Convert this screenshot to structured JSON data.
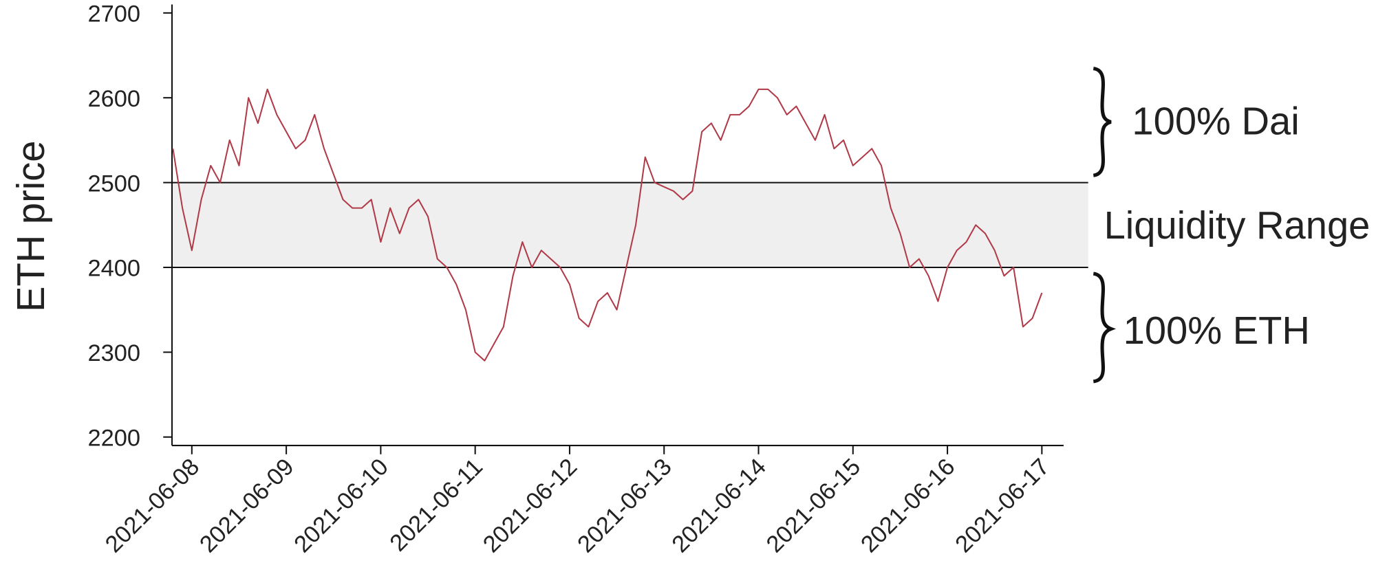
{
  "chart_data": {
    "type": "line",
    "y_label": "ETH price",
    "color": "#b03a48",
    "x": [
      -0.2,
      -0.1,
      0.0,
      0.1,
      0.2,
      0.3,
      0.4,
      0.5,
      0.6,
      0.7,
      0.8,
      0.9,
      1.0,
      1.1,
      1.2,
      1.3,
      1.4,
      1.5,
      1.6,
      1.7,
      1.8,
      1.9,
      2.0,
      2.1,
      2.2,
      2.3,
      2.4,
      2.5,
      2.6,
      2.7,
      2.8,
      2.9,
      3.0,
      3.1,
      3.2,
      3.3,
      3.4,
      3.5,
      3.6,
      3.7,
      3.8,
      3.9,
      4.0,
      4.1,
      4.2,
      4.3,
      4.4,
      4.5,
      4.6,
      4.7,
      4.8,
      4.9,
      5.0,
      5.1,
      5.2,
      5.3,
      5.4,
      5.5,
      5.6,
      5.7,
      5.8,
      5.9,
      6.0,
      6.1,
      6.2,
      6.3,
      6.4,
      6.5,
      6.6,
      6.7,
      6.8,
      6.9,
      7.0,
      7.1,
      7.2,
      7.3,
      7.4,
      7.5,
      7.6,
      7.7,
      7.8,
      7.9,
      8.0,
      8.1,
      8.2,
      8.3,
      8.4,
      8.5,
      8.6,
      8.7,
      8.8,
      8.9,
      9.0
    ],
    "values": [
      2540,
      2470,
      2420,
      2480,
      2520,
      2500,
      2550,
      2520,
      2600,
      2570,
      2610,
      2580,
      2560,
      2540,
      2550,
      2580,
      2540,
      2510,
      2480,
      2470,
      2470,
      2480,
      2430,
      2470,
      2440,
      2470,
      2480,
      2460,
      2410,
      2400,
      2380,
      2350,
      2300,
      2290,
      2310,
      2330,
      2390,
      2430,
      2400,
      2420,
      2410,
      2400,
      2380,
      2340,
      2330,
      2360,
      2370,
      2350,
      2400,
      2450,
      2530,
      2500,
      2495,
      2490,
      2480,
      2490,
      2560,
      2570,
      2550,
      2580,
      2580,
      2590,
      2610,
      2610,
      2600,
      2580,
      2590,
      2570,
      2550,
      2580,
      2540,
      2550,
      2520,
      2530,
      2540,
      2520,
      2470,
      2440,
      2400,
      2410,
      2390,
      2360,
      2400,
      2420,
      2430,
      2450,
      2440,
      2420,
      2390,
      2400,
      2330,
      2340,
      2370
    ],
    "xlim": [
      -0.21,
      9.23
    ],
    "xticks": [
      {
        "value": 0,
        "label": "2021-06-08"
      },
      {
        "value": 1,
        "label": "2021-06-09"
      },
      {
        "value": 2,
        "label": "2021-06-10"
      },
      {
        "value": 3,
        "label": "2021-06-11"
      },
      {
        "value": 4,
        "label": "2021-06-12"
      },
      {
        "value": 5,
        "label": "2021-06-13"
      },
      {
        "value": 6,
        "label": "2021-06-14"
      },
      {
        "value": 7,
        "label": "2021-06-15"
      },
      {
        "value": 8,
        "label": "2021-06-16"
      },
      {
        "value": 9,
        "label": "2021-06-17"
      }
    ],
    "ylim": [
      2190,
      2710
    ],
    "yticks": [
      2200,
      2300,
      2400,
      2500,
      2600,
      2700
    ],
    "range": [
      2400,
      2500
    ],
    "annotations": [
      "100% Dai",
      "Liquidity Range",
      "100% ETH"
    ]
  }
}
